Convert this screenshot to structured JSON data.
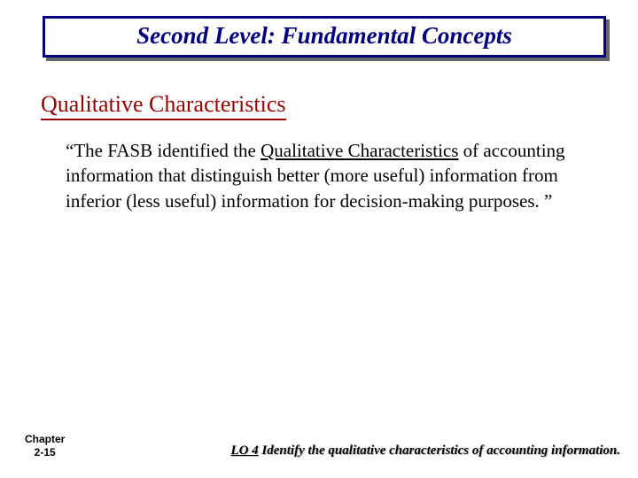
{
  "colors": {
    "title_border": "#000080",
    "title_text": "#000080",
    "subtitle_text": "#990000",
    "subtitle_underline": "#990000",
    "body_text": "#000000",
    "footer_text": "#000000",
    "background": "#ffffff"
  },
  "title": "Second Level: Fundamental Concepts",
  "subtitle": "Qualitative Characteristics",
  "body": {
    "pre": "“The FASB identified the ",
    "underlined": "Qualitative Characteristics",
    "post": " of accounting information that distinguish better (more useful) information from inferior (less useful) information for decision-making purposes. ”"
  },
  "footer": {
    "chapter_line1": "Chapter",
    "chapter_line2": "2-15",
    "lo_label": "LO 4",
    "lo_text": "  Identify the qualitative characteristics of accounting information."
  },
  "typography": {
    "title_fontsize": 27,
    "subtitle_fontsize": 26,
    "body_fontsize": 21,
    "chapter_fontsize": 12,
    "lo_fontsize": 15
  }
}
